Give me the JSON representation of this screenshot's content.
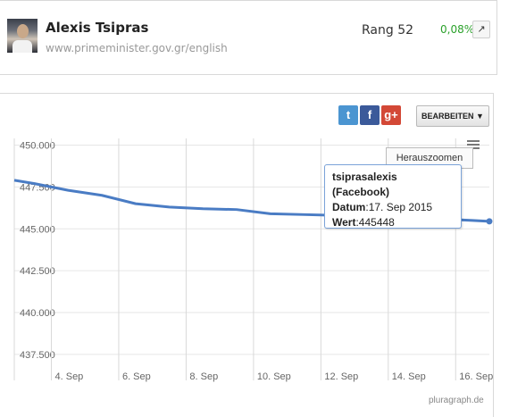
{
  "profile": {
    "name": "Alexis Tsipras",
    "url": "www.primeminister.gov.gr/english",
    "rank": "Rang 52",
    "change": "0,08%",
    "arrow": "↗"
  },
  "toolbar": {
    "twitter": "t",
    "facebook": "f",
    "gplus": "g+",
    "edit_label": "BEARBEITEN ▼"
  },
  "zoom_label": "Herauszoomen",
  "tooltip": {
    "series": "tsiprasalexis (Facebook)",
    "date_label": "Datum",
    "date_value": "17. Sep 2015",
    "value_label": "Wert",
    "value": "445448"
  },
  "credit": "pluragraph.de",
  "colors": {
    "line": "#4a7cc4",
    "change_up": "#2aa12a"
  },
  "chart_data": {
    "type": "line",
    "title": "",
    "xlabel": "",
    "ylabel": "",
    "x_tick_labels": [
      "4. Sep",
      "6. Sep",
      "8. Sep",
      "10. Sep",
      "12. Sep",
      "14. Sep",
      "16. Sep"
    ],
    "y_tick_labels": [
      "450.000",
      "447.500",
      "445.000",
      "442.500",
      "440.000",
      "437.500"
    ],
    "ylim": [
      436800,
      450400
    ],
    "xlim_day": [
      2.9,
      17.0
    ],
    "grid": true,
    "series": [
      {
        "name": "tsiprasalexis (Facebook)",
        "x_day": [
          2.9,
          3.5,
          4.5,
          5.5,
          6.5,
          7.5,
          8.5,
          9.5,
          10.5,
          11.5,
          12.5,
          13.5,
          14.5,
          15.5,
          16.5,
          17.0
        ],
        "values": [
          447900,
          447700,
          447300,
          447000,
          446500,
          446300,
          446200,
          446150,
          445900,
          445850,
          445800,
          445750,
          445700,
          445600,
          445500,
          445448
        ]
      }
    ]
  }
}
